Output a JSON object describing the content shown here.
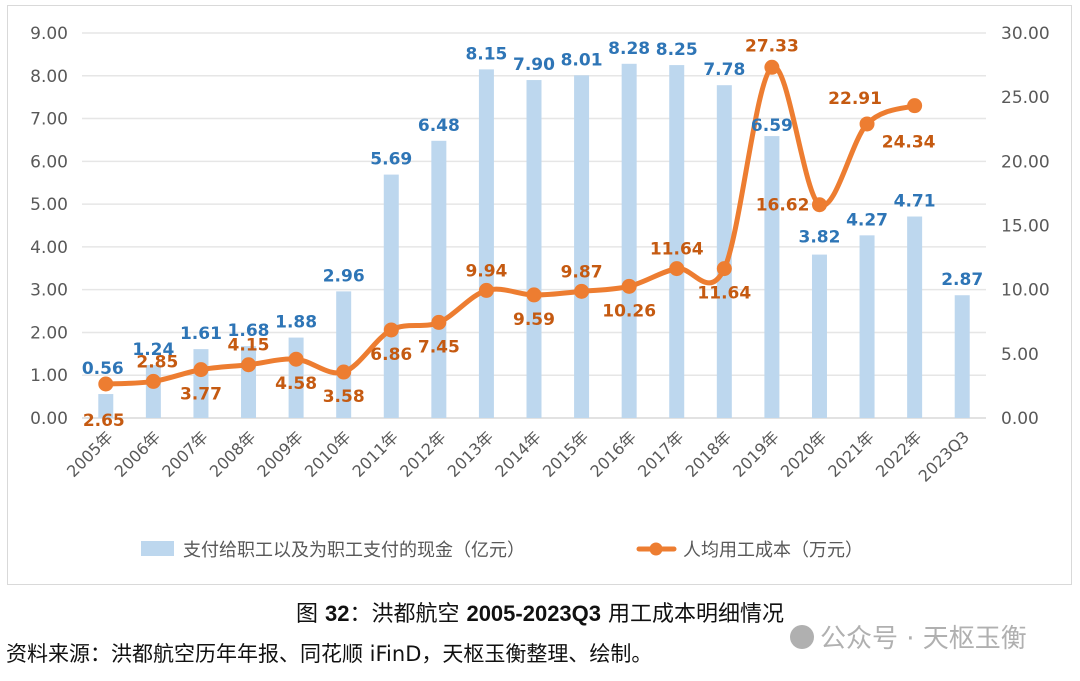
{
  "chart_data": {
    "type": "bar",
    "title": "图 32：洪都航空 2005-2023Q3 用工成本明细情况",
    "categories": [
      "2005年",
      "2006年",
      "2007年",
      "2008年",
      "2009年",
      "2010年",
      "2011年",
      "2012年",
      "2013年",
      "2014年",
      "2015年",
      "2016年",
      "2017年",
      "2018年",
      "2019年",
      "2020年",
      "2021年",
      "2022年",
      "2023Q3"
    ],
    "series": [
      {
        "name": "支付给职工以及为职工支付的现金（亿元）",
        "type": "bar",
        "axis": "left",
        "color": "#BDD7EE",
        "label_color": "#2E75B6",
        "values": [
          0.56,
          1.24,
          1.61,
          1.68,
          1.88,
          2.96,
          5.69,
          6.48,
          8.15,
          7.9,
          8.01,
          8.28,
          8.25,
          7.78,
          6.59,
          3.82,
          4.27,
          4.71,
          2.87
        ],
        "labels": [
          "0.56",
          "1.24",
          "1.61",
          "1.68",
          "1.88",
          "2.96",
          "5.69",
          "6.48",
          "8.15",
          "7.90",
          "8.01",
          "8.28",
          "8.25",
          "7.78",
          "6.59",
          "3.82",
          "4.27",
          "4.71",
          "2.87"
        ]
      },
      {
        "name": "人均用工成本（万元）",
        "type": "line",
        "axis": "right",
        "smooth": true,
        "marker": "circle",
        "color": "#ED7D31",
        "label_color": "#C55A11",
        "values": [
          2.65,
          2.85,
          3.77,
          4.15,
          4.58,
          3.58,
          6.86,
          7.45,
          9.94,
          9.59,
          9.87,
          10.26,
          11.64,
          11.64,
          27.33,
          16.62,
          22.91,
          24.34,
          null
        ],
        "labels": [
          "2.65",
          "2.85",
          "3.77",
          "4.15",
          "4.58",
          "3.58",
          "6.86",
          "7.45",
          "9.94",
          "9.59",
          "9.87",
          "10.26",
          "11.64",
          "11.64",
          "27.33",
          "16.62",
          "22.91",
          "24.34",
          ""
        ],
        "label_positions": [
          "below",
          "above",
          "below",
          "above",
          "below",
          "below",
          "below",
          "below",
          "above",
          "below",
          "above",
          "below",
          "above",
          "below",
          "above",
          "left",
          "above",
          "below",
          ""
        ]
      }
    ],
    "y_left": {
      "ylim": [
        0,
        9
      ],
      "ticks": [
        "0.00",
        "1.00",
        "2.00",
        "3.00",
        "4.00",
        "5.00",
        "6.00",
        "7.00",
        "8.00",
        "9.00"
      ]
    },
    "y_right": {
      "ylim": [
        0,
        30
      ],
      "ticks": [
        "0.00",
        "5.00",
        "10.00",
        "15.00",
        "20.00",
        "25.00",
        "30.00"
      ]
    },
    "xlabel": "",
    "ylabel": "",
    "grid": true,
    "legend_placement": "bottom"
  },
  "caption": {
    "prefix": "图 ",
    "number": "32",
    "sep": "：洪都航空 ",
    "range": "2005-2023Q3",
    "suffix": " 用工成本明细情况"
  },
  "source": "资料来源：洪都航空历年年报、同花顺 iFinD，天枢玉衡整理、绘制。",
  "watermark": "公众号 · 天枢玉衡"
}
